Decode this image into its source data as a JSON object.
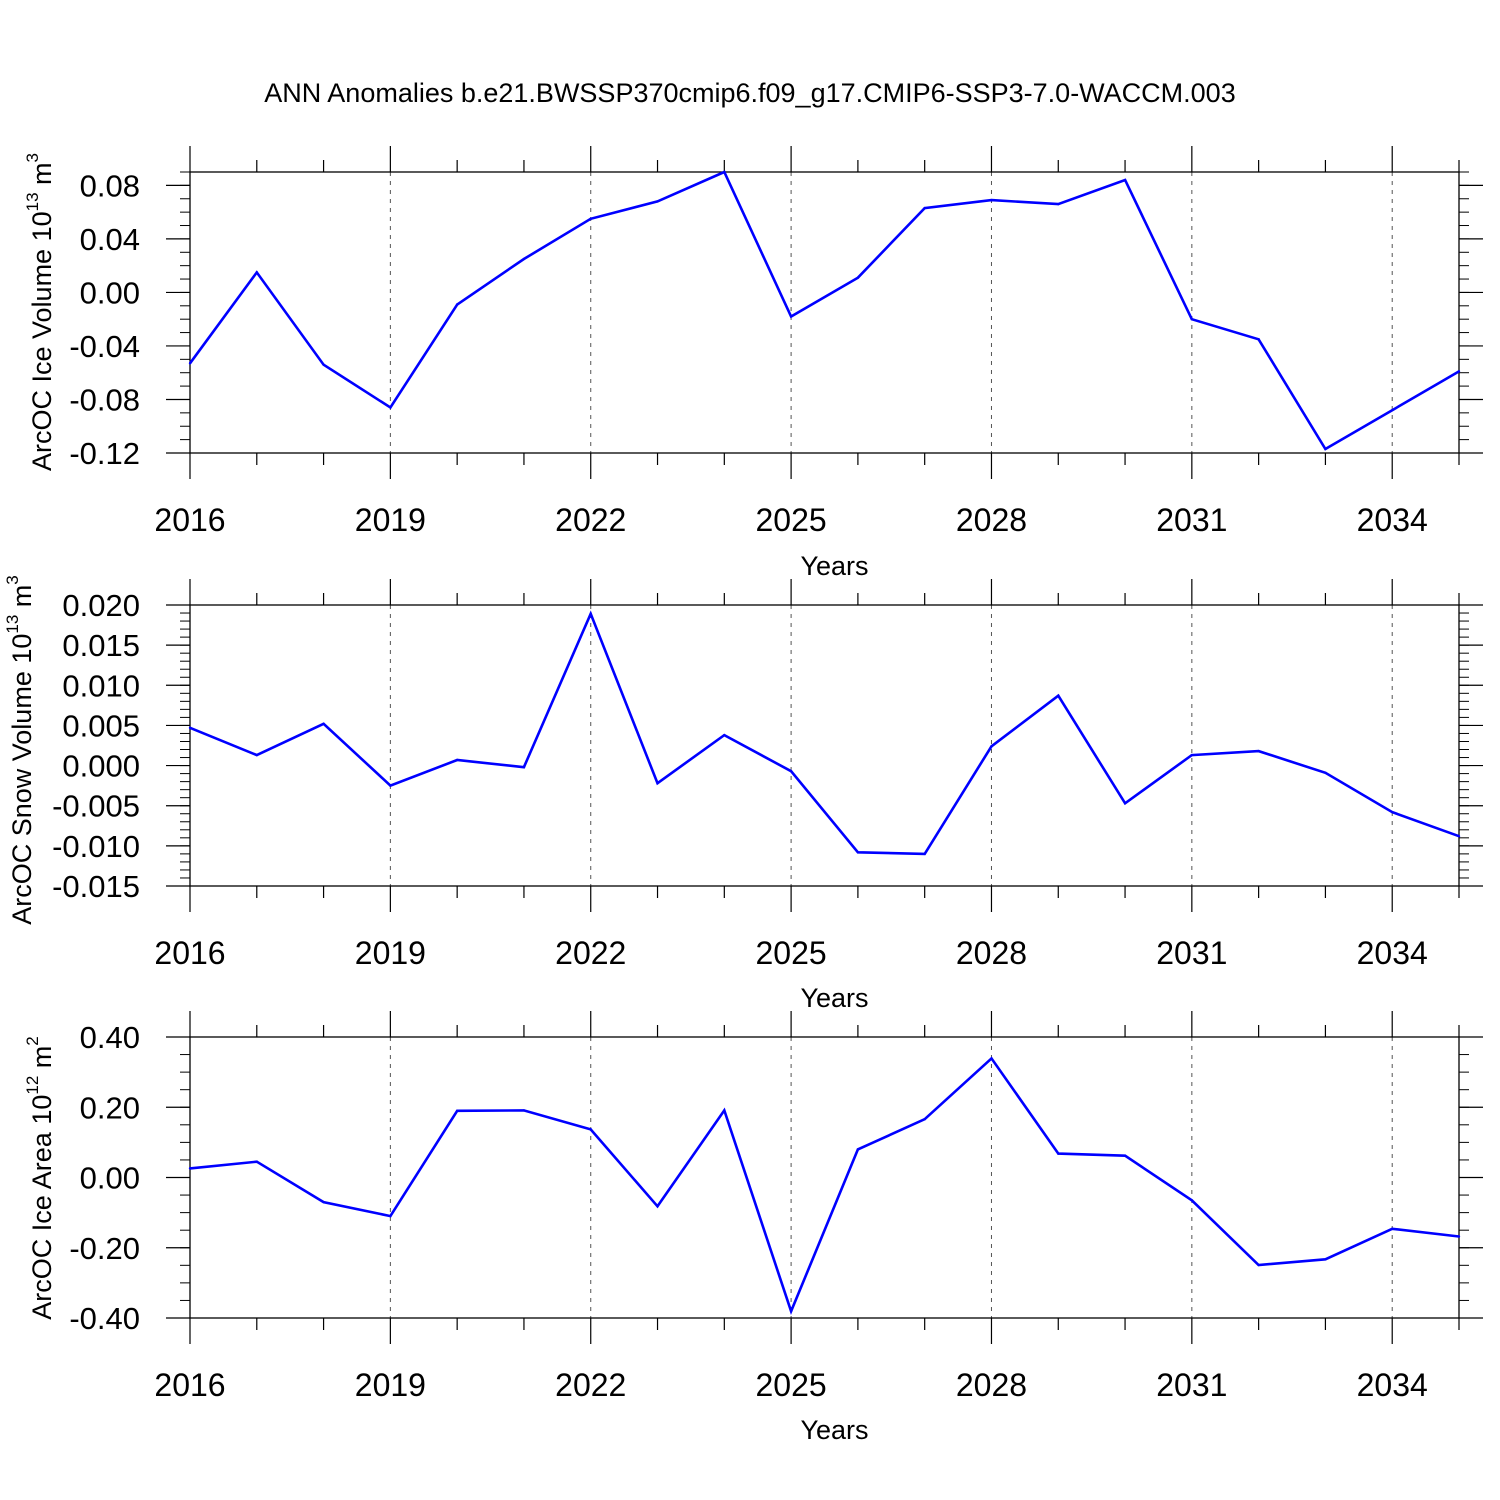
{
  "title": "ANN Anomalies b.e21.BWSSP370cmip6.f09_g17.CMIP6-SSP3-7.0-WACCM.003",
  "colors": {
    "series": "#0000ff",
    "frame": "#000000",
    "grid": "#555555"
  },
  "chart_data": [
    {
      "type": "line",
      "xlabel": "Years",
      "ylabel_main": "ArcOC Ice Volume 10",
      "ylabel_exp": "13",
      "ylabel_unit": " m",
      "ylabel_unit_exp": "3",
      "xlim": [
        2016,
        2035
      ],
      "ylim": [
        -0.12,
        0.09
      ],
      "x_ticks": [
        2016,
        2019,
        2022,
        2025,
        2028,
        2031,
        2034
      ],
      "x_tick_labels": [
        "2016",
        "2019",
        "2022",
        "2025",
        "2028",
        "2031",
        "2034"
      ],
      "y_ticks": [
        -0.12,
        -0.08,
        -0.04,
        0.0,
        0.04,
        0.08
      ],
      "y_tick_labels": [
        "-0.12",
        "-0.08",
        "-0.04",
        "0.00",
        "0.04",
        "0.08"
      ],
      "y_minor_step": 0.01,
      "grid": "vertical dashed at major x ticks",
      "x": [
        2016,
        2017,
        2018,
        2019,
        2020,
        2021,
        2022,
        2023,
        2024,
        2025,
        2026,
        2027,
        2028,
        2029,
        2030,
        2031,
        2032,
        2033,
        2034,
        2035
      ],
      "values": [
        -0.053,
        0.015,
        -0.054,
        -0.086,
        -0.009,
        0.025,
        0.055,
        0.068,
        0.09,
        -0.018,
        0.011,
        0.063,
        0.069,
        0.066,
        0.084,
        -0.02,
        -0.035,
        -0.117,
        -0.088,
        -0.059
      ]
    },
    {
      "type": "line",
      "xlabel": "Years",
      "ylabel_main": "ArcOC Snow Volume 10",
      "ylabel_exp": "13",
      "ylabel_unit": " m",
      "ylabel_unit_exp": "3",
      "xlim": [
        2016,
        2035
      ],
      "ylim": [
        -0.015,
        0.02
      ],
      "x_ticks": [
        2016,
        2019,
        2022,
        2025,
        2028,
        2031,
        2034
      ],
      "x_tick_labels": [
        "2016",
        "2019",
        "2022",
        "2025",
        "2028",
        "2031",
        "2034"
      ],
      "y_ticks": [
        -0.015,
        -0.01,
        -0.005,
        0.0,
        0.005,
        0.01,
        0.015,
        0.02
      ],
      "y_tick_labels": [
        "-0.015",
        "-0.010",
        "-0.005",
        "0.000",
        "0.005",
        "0.010",
        "0.015",
        "0.020"
      ],
      "y_minor_step": 0.001,
      "grid": "vertical dashed at major x ticks",
      "x": [
        2016,
        2017,
        2018,
        2019,
        2020,
        2021,
        2022,
        2023,
        2024,
        2025,
        2026,
        2027,
        2028,
        2029,
        2030,
        2031,
        2032,
        2033,
        2034,
        2035
      ],
      "values": [
        0.0047,
        0.0013,
        0.0052,
        -0.0025,
        0.0007,
        -0.0002,
        0.0189,
        -0.0022,
        0.0038,
        -0.0007,
        -0.0108,
        -0.011,
        0.0024,
        0.0087,
        -0.0047,
        0.0013,
        0.0018,
        -0.0009,
        -0.0058,
        -0.0088
      ]
    },
    {
      "type": "line",
      "xlabel": "Years",
      "ylabel_main": "ArcOC Ice Area 10",
      "ylabel_exp": "12",
      "ylabel_unit": " m",
      "ylabel_unit_exp": "2",
      "xlim": [
        2016,
        2035
      ],
      "ylim": [
        -0.4,
        0.4
      ],
      "x_ticks": [
        2016,
        2019,
        2022,
        2025,
        2028,
        2031,
        2034
      ],
      "x_tick_labels": [
        "2016",
        "2019",
        "2022",
        "2025",
        "2028",
        "2031",
        "2034"
      ],
      "y_ticks": [
        -0.4,
        -0.2,
        0.0,
        0.2,
        0.4
      ],
      "y_tick_labels": [
        "-0.40",
        "-0.20",
        "0.00",
        "0.20",
        "0.40"
      ],
      "y_minor_step": 0.05,
      "grid": "vertical dashed at major x ticks",
      "x": [
        2016,
        2017,
        2018,
        2019,
        2020,
        2021,
        2022,
        2023,
        2024,
        2025,
        2026,
        2027,
        2028,
        2029,
        2030,
        2031,
        2032,
        2033,
        2034,
        2035
      ],
      "values": [
        0.026,
        0.045,
        -0.07,
        -0.11,
        0.19,
        0.191,
        0.137,
        -0.082,
        0.191,
        -0.381,
        0.08,
        0.166,
        0.339,
        0.068,
        0.062,
        -0.065,
        -0.249,
        -0.233,
        -0.146,
        -0.168
      ]
    }
  ]
}
